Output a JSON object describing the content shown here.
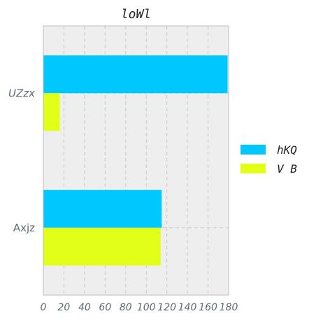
{
  "chart_data": {
    "type": "bar",
    "orientation": "horizontal",
    "title": "loWl",
    "categories": [
      "UZzx",
      "Axjz"
    ],
    "series": [
      {
        "name": "hKQ",
        "color": "#00c8ff",
        "values": [
          179,
          115
        ]
      },
      {
        "name": "V B",
        "color": "#e2ff1a",
        "values": [
          16,
          114
        ]
      }
    ],
    "xlim": [
      0,
      180
    ],
    "xticks": [
      "0",
      "20",
      "40",
      "60",
      "80",
      "100",
      "120",
      "140",
      "160",
      "180"
    ],
    "grid": true,
    "legend_position": "right"
  }
}
